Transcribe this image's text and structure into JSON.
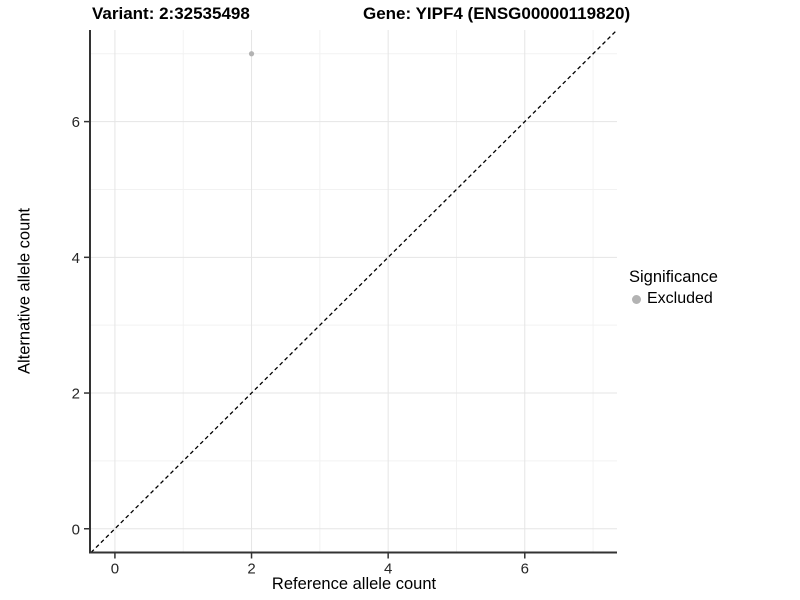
{
  "title": {
    "variant": "Variant: 2:32535498",
    "gene": "Gene: YIPF4 (ENSG00000119820)"
  },
  "chart_data": {
    "type": "scatter",
    "title": "Variant: 2:32535498   Gene: YIPF4 (ENSG00000119820)",
    "xlabel": "Reference allele count",
    "ylabel": "Alternative allele count",
    "xlim": [
      -0.35,
      7.35
    ],
    "ylim": [
      -0.35,
      7.35
    ],
    "x_breaks": [
      0,
      2,
      4,
      6
    ],
    "y_breaks": [
      0,
      2,
      4,
      6
    ],
    "x_minor_breaks": [
      1,
      3,
      5,
      7
    ],
    "y_minor_breaks": [
      1,
      3,
      5,
      7
    ],
    "grid": true,
    "series": [
      {
        "name": "Excluded",
        "color": "#b3b3b3",
        "points": [
          {
            "x": 2,
            "y": 7
          }
        ]
      }
    ],
    "reference_line": {
      "style": "dashed",
      "from": [
        -0.35,
        -0.35
      ],
      "to": [
        7.35,
        7.35
      ],
      "color": "#000000"
    },
    "legend": {
      "position": "right",
      "title": "Significance",
      "entries": [
        {
          "label": "Excluded",
          "color": "#b3b3b3"
        }
      ]
    },
    "colors": {
      "background": "#ffffff",
      "grid_major": "#e5e5e5",
      "grid_minor": "#f2f2f2",
      "axis_line": "#333333",
      "tick_label": "#262626",
      "point": "#b3b3b3"
    }
  }
}
